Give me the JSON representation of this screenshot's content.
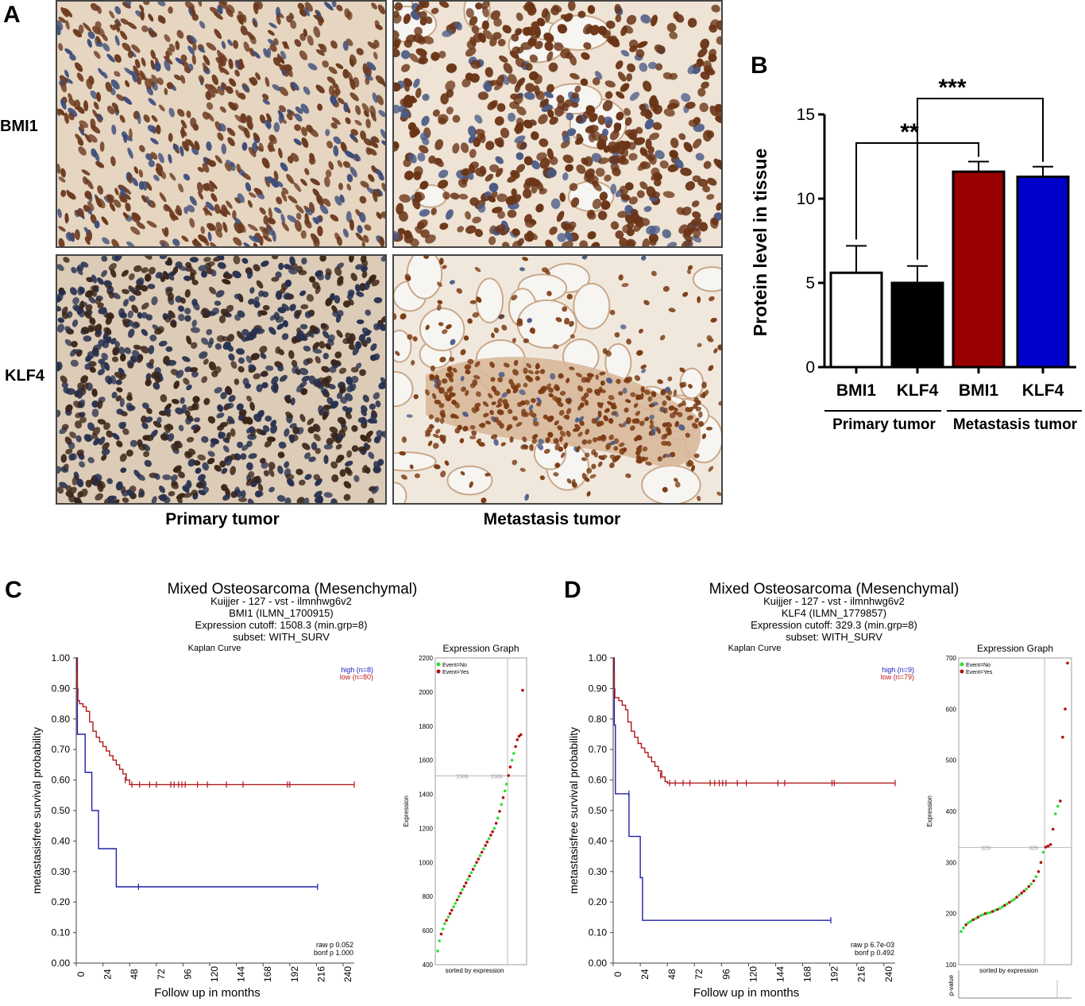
{
  "panels": {
    "a": {
      "letter": "A",
      "row_labels": [
        "BMI1",
        "KLF4"
      ],
      "col_labels": [
        "Primary tumor",
        "Metastasis tumor"
      ],
      "colors": {
        "brown_nuclei": "#6e3a1c",
        "blue_nuclei": "#2a3550",
        "stroma": "#e9d8c4",
        "lumen": "#f7f5f2"
      }
    },
    "b": {
      "letter": "B",
      "group_labels": [
        "Primary tumor",
        "Metastasis tumor"
      ],
      "significance": [
        "**",
        "***"
      ]
    },
    "c": {
      "letter": "C",
      "title": "Mixed Osteosarcoma (Mesenchymal)",
      "line2": "Kuijjer - 127 - vst - ilmnhwg6v2",
      "line3": "BMI1 (ILMN_1700915)",
      "line4": "Expression cutoff: 1508.3 (min.grp=8)",
      "line5": "subset: WITH_SURV",
      "km_title": "Kaplan Curve",
      "km_ylabel": "metastasisfree survival probability",
      "km_xlabel": "Follow up in months",
      "legend_high": "high (n=8)",
      "legend_low": "low (n=80)",
      "raw_p": "raw p 0.052",
      "bonf_p": "bonf p 1.000",
      "expr_title": "Expression Graph",
      "expr_ylabel": "Expression",
      "expr_xlabel": "sorted by expression",
      "expr_legend_no": "Event=No",
      "expr_legend_yes": "Event=Yes",
      "cutoff_label": "1508"
    },
    "d": {
      "letter": "D",
      "title": "Mixed Osteosarcoma (Mesenchymal)",
      "line2": "Kuijjer - 127 - vst - ilmnhwg6v2",
      "line3": "KLF4 (ILMN_1779857)",
      "line4": "Expression cutoff: 329.3 (min.grp=8)",
      "line5": "subset: WITH_SURV",
      "km_title": "Kaplan Curve",
      "km_ylabel": "metastasisfree survival probability",
      "km_xlabel": "Follow up in months",
      "legend_high": "high (n=9)",
      "legend_low": "low (n=79)",
      "raw_p": "raw p 6.7e-03",
      "bonf_p": "bonf p 0.492",
      "expr_title": "Expression Graph",
      "expr_ylabel": "Expression",
      "expr_xlabel": "sorted by expression",
      "expr_legend_no": "Event=No",
      "expr_legend_yes": "Event=Yes",
      "cutoff_label": "329",
      "pvalue_label": "p-value"
    }
  },
  "chart_data": [
    {
      "type": "bar",
      "panel": "B",
      "categories": [
        "BMI1",
        "KLF4",
        "BMI1",
        "KLF4"
      ],
      "groups": [
        "Primary tumor",
        "Primary tumor",
        "Metastasis tumor",
        "Metastasis tumor"
      ],
      "values": [
        5.6,
        5.0,
        11.6,
        11.3
      ],
      "errors": [
        1.6,
        1.0,
        0.6,
        0.6
      ],
      "colors": [
        "#ffffff",
        "#000000",
        "#990000",
        "#0000cc"
      ],
      "ylabel": "Protein level in tissue",
      "ylim": [
        0,
        15
      ],
      "yticks": [
        0,
        5,
        10,
        15
      ],
      "significance": [
        {
          "from": 0,
          "to": 2,
          "label": "**"
        },
        {
          "from": 1,
          "to": 3,
          "label": "***"
        }
      ]
    },
    {
      "type": "line",
      "panel": "C",
      "subtype": "kaplan-meier",
      "xlim": [
        0,
        250
      ],
      "ylim": [
        0,
        1
      ],
      "xticks": [
        0,
        24,
        48,
        72,
        96,
        120,
        144,
        168,
        192,
        216,
        240
      ],
      "yticks": [
        0.0,
        0.1,
        0.2,
        0.3,
        0.4,
        0.5,
        0.6,
        0.7,
        0.8,
        0.9,
        1.0
      ],
      "series": [
        {
          "name": "high (n=8)",
          "color": "#2020a8",
          "steps": [
            [
              0,
              1.0
            ],
            [
              1,
              0.75
            ],
            [
              8,
              0.625
            ],
            [
              14,
              0.5
            ],
            [
              20,
              0.375
            ],
            [
              36,
              0.25
            ],
            [
              217,
              0.25
            ]
          ],
          "censor": [
            [
              56,
              0.25
            ],
            [
              217,
              0.25
            ]
          ]
        },
        {
          "name": "low (n=80)",
          "color": "#b01818",
          "steps": [
            [
              0,
              1.0
            ],
            [
              0.5,
              0.95
            ],
            [
              1,
              0.9
            ],
            [
              1.5,
              0.86
            ],
            [
              3,
              0.85
            ],
            [
              6,
              0.84
            ],
            [
              9,
              0.825
            ],
            [
              12,
              0.79
            ],
            [
              15,
              0.76
            ],
            [
              18,
              0.74
            ],
            [
              21,
              0.725
            ],
            [
              24,
              0.71
            ],
            [
              27,
              0.695
            ],
            [
              30,
              0.68
            ],
            [
              33,
              0.665
            ],
            [
              36,
              0.65
            ],
            [
              39,
              0.635
            ],
            [
              42,
              0.62
            ],
            [
              45,
              0.6
            ],
            [
              48,
              0.585
            ],
            [
              250,
              0.585
            ]
          ],
          "censor": [
            [
              44,
              0.6
            ],
            [
              50,
              0.585
            ],
            [
              57,
              0.585
            ],
            [
              66,
              0.585
            ],
            [
              72,
              0.585
            ],
            [
              85,
              0.585
            ],
            [
              88,
              0.585
            ],
            [
              92,
              0.585
            ],
            [
              95,
              0.585
            ],
            [
              98,
              0.585
            ],
            [
              109,
              0.585
            ],
            [
              118,
              0.585
            ],
            [
              135,
              0.585
            ],
            [
              150,
              0.585
            ],
            [
              190,
              0.585
            ],
            [
              192,
              0.585
            ],
            [
              250,
              0.585
            ]
          ]
        }
      ]
    },
    {
      "type": "scatter",
      "panel": "C",
      "subtype": "expression-graph",
      "ylim": [
        400,
        2200
      ],
      "yticks": [
        400,
        600,
        800,
        1000,
        1200,
        1400,
        1600,
        1800,
        2000,
        2200
      ],
      "cutoff": 1508.3,
      "sorted_values": [
        480,
        540,
        580,
        610,
        640,
        660,
        680,
        700,
        720,
        740,
        760,
        780,
        800,
        820,
        840,
        860,
        880,
        900,
        920,
        940,
        960,
        980,
        1000,
        1020,
        1040,
        1060,
        1080,
        1100,
        1120,
        1140,
        1160,
        1180,
        1200,
        1230,
        1260,
        1300,
        1340,
        1380,
        1420,
        1460,
        1510,
        1560,
        1600,
        1640,
        1680,
        1720,
        1740,
        1750,
        2010
      ],
      "event_flags": [
        0,
        0,
        1,
        0,
        0,
        1,
        0,
        1,
        1,
        0,
        0,
        1,
        0,
        1,
        0,
        1,
        1,
        0,
        1,
        0,
        1,
        0,
        1,
        1,
        0,
        1,
        0,
        1,
        1,
        0,
        1,
        1,
        0,
        1,
        0,
        1,
        0,
        1,
        0,
        0,
        1,
        1,
        0,
        0,
        1,
        1,
        1,
        1,
        1
      ]
    },
    {
      "type": "line",
      "panel": "D",
      "subtype": "kaplan-meier",
      "xlim": [
        0,
        250
      ],
      "ylim": [
        0,
        1
      ],
      "xticks": [
        0,
        24,
        48,
        72,
        96,
        120,
        144,
        168,
        192,
        216,
        240
      ],
      "yticks": [
        0.0,
        0.1,
        0.2,
        0.3,
        0.4,
        0.5,
        0.6,
        0.7,
        0.8,
        0.9,
        1.0
      ],
      "series": [
        {
          "name": "high (n=9)",
          "color": "#2020a8",
          "steps": [
            [
              0,
              1.0
            ],
            [
              1,
              0.78
            ],
            [
              2,
              0.555
            ],
            [
              14,
              0.415
            ],
            [
              24,
              0.28
            ],
            [
              26,
              0.14
            ],
            [
              193,
              0.14
            ]
          ],
          "censor": [
            [
              14,
              0.555
            ],
            [
              193,
              0.14
            ]
          ]
        },
        {
          "name": "low (n=79)",
          "color": "#b01818",
          "steps": [
            [
              0,
              1.0
            ],
            [
              0.5,
              0.95
            ],
            [
              1,
              0.9
            ],
            [
              1.5,
              0.87
            ],
            [
              5,
              0.86
            ],
            [
              8,
              0.845
            ],
            [
              11,
              0.83
            ],
            [
              13,
              0.79
            ],
            [
              16,
              0.76
            ],
            [
              19,
              0.74
            ],
            [
              22,
              0.72
            ],
            [
              25,
              0.705
            ],
            [
              28,
              0.69
            ],
            [
              31,
              0.675
            ],
            [
              34,
              0.66
            ],
            [
              37,
              0.645
            ],
            [
              40,
              0.63
            ],
            [
              43,
              0.61
            ],
            [
              46,
              0.595
            ],
            [
              48,
              0.59
            ],
            [
              250,
              0.59
            ]
          ],
          "censor": [
            [
              42,
              0.615
            ],
            [
              50,
              0.59
            ],
            [
              55,
              0.59
            ],
            [
              62,
              0.59
            ],
            [
              68,
              0.59
            ],
            [
              86,
              0.59
            ],
            [
              90,
              0.59
            ],
            [
              94,
              0.59
            ],
            [
              97,
              0.59
            ],
            [
              100,
              0.59
            ],
            [
              110,
              0.59
            ],
            [
              118,
              0.59
            ],
            [
              146,
              0.59
            ],
            [
              152,
              0.59
            ],
            [
              194,
              0.59
            ],
            [
              196,
              0.59
            ],
            [
              250,
              0.59
            ]
          ]
        }
      ]
    },
    {
      "type": "scatter",
      "panel": "D",
      "subtype": "expression-graph",
      "ylim": [
        100,
        700
      ],
      "yticks": [
        100,
        200,
        300,
        400,
        500,
        600,
        700
      ],
      "cutoff": 329.3,
      "sorted_values": [
        165,
        172,
        178,
        182,
        185,
        188,
        190,
        193,
        196,
        198,
        200,
        201,
        202,
        204,
        206,
        208,
        210,
        213,
        216,
        219,
        222,
        225,
        228,
        232,
        236,
        240,
        244,
        248,
        253,
        258,
        264,
        272,
        282,
        300,
        320,
        330,
        332,
        335,
        365,
        395,
        410,
        420,
        545,
        600,
        690
      ],
      "event_flags": [
        0,
        0,
        1,
        0,
        0,
        1,
        0,
        1,
        0,
        0,
        1,
        0,
        0,
        1,
        0,
        1,
        0,
        0,
        1,
        0,
        1,
        0,
        0,
        1,
        0,
        1,
        1,
        0,
        1,
        0,
        1,
        0,
        1,
        1,
        0,
        1,
        1,
        1,
        1,
        0,
        0,
        1,
        1,
        1,
        1
      ]
    }
  ]
}
